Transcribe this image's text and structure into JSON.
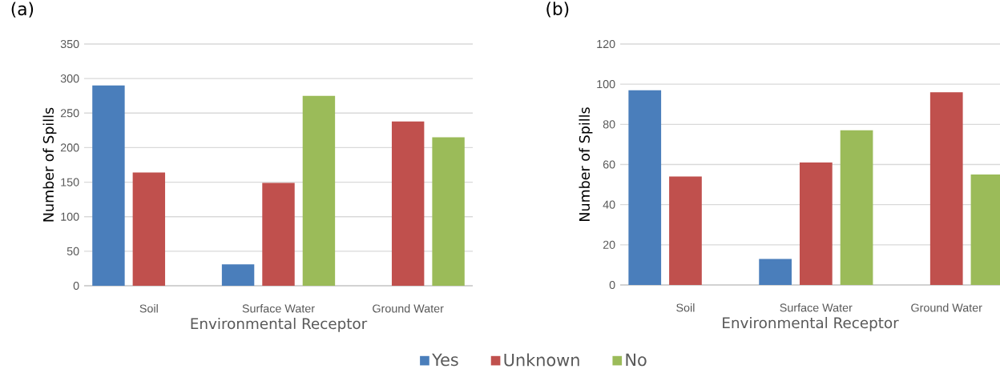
{
  "chart_data": [
    {
      "type": "bar",
      "title": "(a)",
      "xlabel": "Environmental Receptor",
      "ylabel": "Number of Spills",
      "categories": [
        "Soil",
        "Surface Water",
        "Ground Water"
      ],
      "series": [
        {
          "name": "Yes",
          "color": "#4a7ebb",
          "values": [
            290,
            31,
            null
          ]
        },
        {
          "name": "Unknown",
          "color": "#c0504d",
          "values": [
            164,
            149,
            238
          ]
        },
        {
          "name": "No",
          "color": "#9bbb59",
          "values": [
            null,
            275,
            215
          ]
        }
      ],
      "ylim": [
        0,
        350
      ],
      "yticks": [
        0,
        50,
        100,
        150,
        200,
        250,
        300,
        350
      ],
      "grid": "y",
      "legend": "bottom"
    },
    {
      "type": "bar",
      "title": "(b)",
      "xlabel": "Environmental Receptor",
      "ylabel": "Number of Spills",
      "categories": [
        "Soil",
        "Surface Water",
        "Ground Water"
      ],
      "series": [
        {
          "color": "#4a7ebb",
          "values": [
            97,
            13,
            null
          ]
        },
        {
          "color": "#c0504d",
          "values": [
            54,
            61,
            96
          ]
        },
        {
          "color": "#9bbb59",
          "values": [
            null,
            77,
            55
          ]
        }
      ],
      "ylim": [
        0,
        120
      ],
      "yticks": [
        0,
        20,
        40,
        60,
        80,
        100,
        120
      ],
      "grid": "y"
    }
  ]
}
